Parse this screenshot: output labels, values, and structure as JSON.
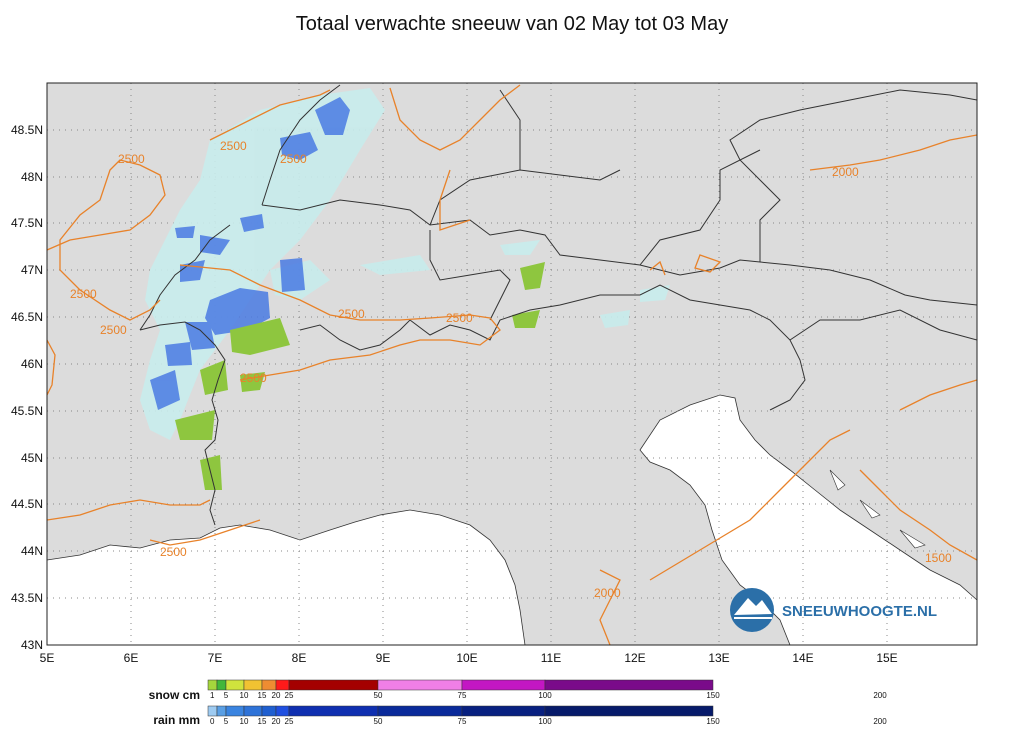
{
  "title": "Totaal verwachte sneeuw van 02 May tot 03 May",
  "brand": "SNEEUWHOOGTE.NL",
  "lat_ticks": [
    "48.5N",
    "48N",
    "47.5N",
    "47N",
    "46.5N",
    "46N",
    "45.5N",
    "45N",
    "44.5N",
    "44N",
    "43.5N",
    "43N"
  ],
  "lon_ticks": [
    "5E",
    "6E",
    "7E",
    "8E",
    "9E",
    "10E",
    "11E",
    "12E",
    "13E",
    "14E",
    "15E"
  ],
  "contour_labels": [
    "2500",
    "2500",
    "2500",
    "2500",
    "2500",
    "2500",
    "2500",
    "2500",
    "2500",
    "2000",
    "2000",
    "1500"
  ],
  "legend": {
    "snow": {
      "title": "snow cm",
      "ticks": [
        "1",
        "5",
        "10",
        "15",
        "20",
        "25",
        "50",
        "75",
        "100",
        "150",
        "200"
      ],
      "colors": [
        "#a5d63c",
        "#41b73a",
        "#cfe33d",
        "#f1c232",
        "#ee8c32",
        "#ff1a1a",
        "#a40000",
        "#f07fe6",
        "#c317c3",
        "#7a0b8a"
      ]
    },
    "rain": {
      "title": "rain mm",
      "ticks": [
        "0",
        "5",
        "10",
        "15",
        "20",
        "25",
        "50",
        "75",
        "100",
        "150",
        "200"
      ],
      "colors": [
        "#9ecbf1",
        "#5a9fe4",
        "#3a84e0",
        "#2e73d8",
        "#1f5fd0",
        "#1f4fe0",
        "#0f2fb0",
        "#0a2a9a",
        "#082080",
        "#061a6a"
      ]
    }
  },
  "colors": {
    "land": "#dcdcdc",
    "sea": "#ffffff",
    "contour": "#e8822a",
    "rain_light": "#c8ecec",
    "rain_heavy": "#4a7be3",
    "snow_green": "#8ec63f"
  }
}
